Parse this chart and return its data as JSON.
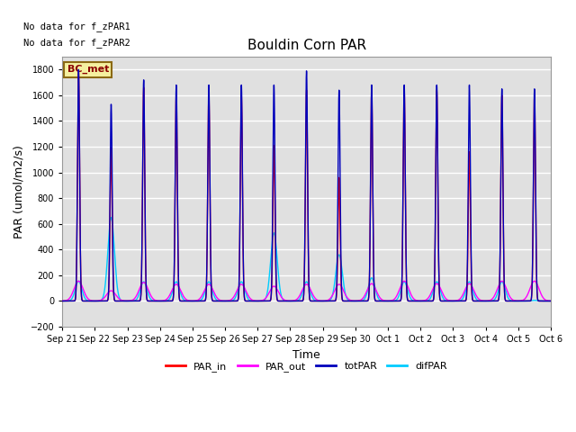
{
  "title": "Bouldin Corn PAR",
  "xlabel": "Time",
  "ylabel": "PAR (umol/m2/s)",
  "top_text_line1": "No data for f_zPAR1",
  "top_text_line2": "No data for f_zPAR2",
  "legend_box_label": "BC_met",
  "legend_entries": [
    "PAR_in",
    "PAR_out",
    "totPAR",
    "difPAR"
  ],
  "legend_colors": [
    "#ff0000",
    "#ff00ff",
    "#0000bb",
    "#00ccff"
  ],
  "ylim": [
    -200,
    1900
  ],
  "yticks": [
    -200,
    0,
    200,
    400,
    600,
    800,
    1000,
    1200,
    1400,
    1600,
    1800
  ],
  "num_days": 15,
  "bg_color": "#e0e0e0",
  "fig_bg_color": "#ffffff",
  "grid_color": "#ffffff",
  "peak_heights_totPAR": [
    1800,
    1530,
    1720,
    1680,
    1680,
    1680,
    1680,
    1790,
    1640,
    1680,
    1680,
    1680,
    1680,
    1650,
    1650
  ],
  "peak_heights_PAR_in": [
    1780,
    1190,
    1660,
    1610,
    1610,
    1600,
    1210,
    1640,
    960,
    1640,
    1640,
    1640,
    1160,
    1600,
    1600
  ],
  "peak_heights_PAR_out": [
    155,
    80,
    145,
    130,
    130,
    130,
    115,
    130,
    130,
    135,
    155,
    135,
    135,
    155,
    155
  ],
  "peak_heights_difPAR": [
    155,
    650,
    150,
    150,
    150,
    150,
    530,
    150,
    360,
    180,
    150,
    150,
    150,
    150,
    5
  ],
  "x_tick_labels": [
    "Sep 21",
    "Sep 22",
    "Sep 23",
    "Sep 24",
    "Sep 25",
    "Sep 26",
    "Sep 27",
    "Sep 28",
    "Sep 29",
    "Sep 30",
    "Oct 1",
    "Oct 2",
    "Oct 3",
    "Oct 4",
    "Oct 5",
    "Oct 6"
  ],
  "linewidth": 1.0
}
